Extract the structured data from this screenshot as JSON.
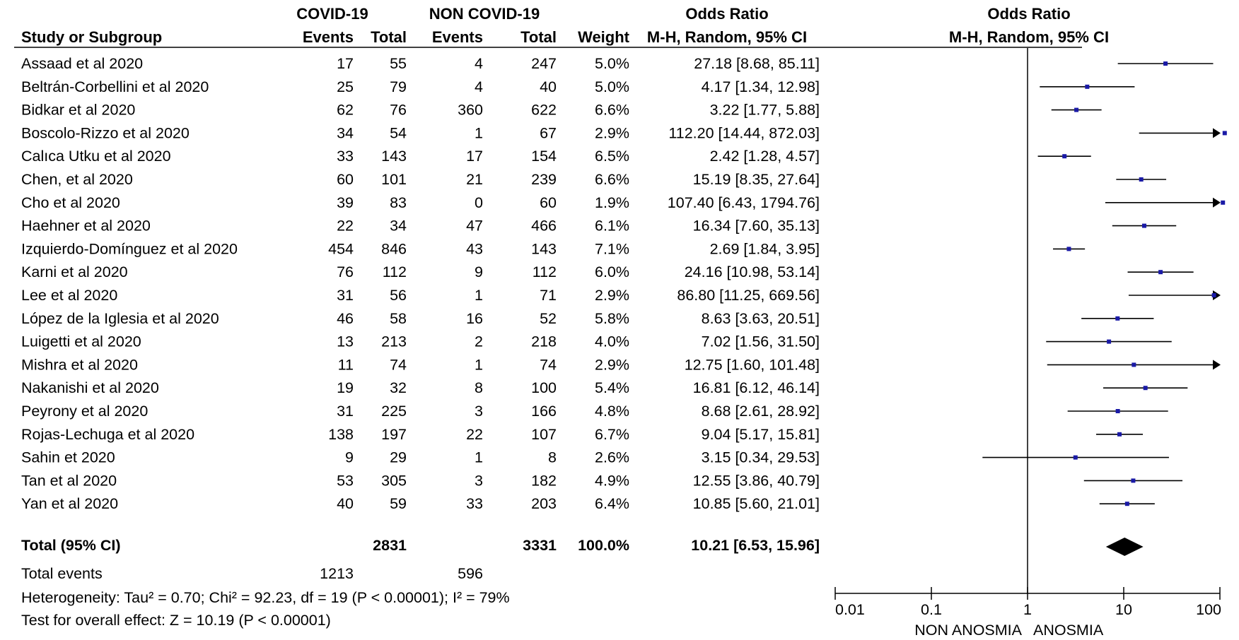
{
  "chart_data": {
    "type": "forest",
    "headers": {
      "group1": "COVID-19",
      "group2": "NON COVID-19",
      "or_col": "Odds Ratio",
      "study_col": "Study or Subgroup",
      "events": "Events",
      "total": "Total",
      "weight": "Weight",
      "method": "M-H, Random, 95% CI",
      "plot_title": "Odds Ratio",
      "plot_method": "M-H, Random, 95% CI"
    },
    "studies": [
      {
        "study": "Assaad et al 2020",
        "e1": "17",
        "t1": "55",
        "e2": "4",
        "t2": "247",
        "weight": "5.0%",
        "ci_text": "27.18 [8.68, 85.11]",
        "or": 27.18,
        "lo": 8.68,
        "hi": 85.11
      },
      {
        "study": "Beltrán-Corbellini et al 2020",
        "e1": "25",
        "t1": "79",
        "e2": "4",
        "t2": "40",
        "weight": "5.0%",
        "ci_text": "4.17 [1.34, 12.98]",
        "or": 4.17,
        "lo": 1.34,
        "hi": 12.98
      },
      {
        "study": "Bidkar et al 2020",
        "e1": "62",
        "t1": "76",
        "e2": "360",
        "t2": "622",
        "weight": "6.6%",
        "ci_text": "3.22 [1.77, 5.88]",
        "or": 3.22,
        "lo": 1.77,
        "hi": 5.88
      },
      {
        "study": "Boscolo-Rizzo et al 2020",
        "e1": "34",
        "t1": "54",
        "e2": "1",
        "t2": "67",
        "weight": "2.9%",
        "ci_text": "112.20 [14.44, 872.03]",
        "or": 112.2,
        "lo": 14.44,
        "hi": 872.03
      },
      {
        "study": "Calıca Utku et al 2020",
        "e1": "33",
        "t1": "143",
        "e2": "17",
        "t2": "154",
        "weight": "6.5%",
        "ci_text": "2.42 [1.28, 4.57]",
        "or": 2.42,
        "lo": 1.28,
        "hi": 4.57
      },
      {
        "study": "Chen, et al 2020",
        "e1": "60",
        "t1": "101",
        "e2": "21",
        "t2": "239",
        "weight": "6.6%",
        "ci_text": "15.19 [8.35, 27.64]",
        "or": 15.19,
        "lo": 8.35,
        "hi": 27.64
      },
      {
        "study": "Cho et al 2020",
        "e1": "39",
        "t1": "83",
        "e2": "0",
        "t2": "60",
        "weight": "1.9%",
        "ci_text": "107.40 [6.43, 1794.76]",
        "or": 107.4,
        "lo": 6.43,
        "hi": 1794.76
      },
      {
        "study": "Haehner et al 2020",
        "e1": "22",
        "t1": "34",
        "e2": "47",
        "t2": "466",
        "weight": "6.1%",
        "ci_text": "16.34 [7.60, 35.13]",
        "or": 16.34,
        "lo": 7.6,
        "hi": 35.13
      },
      {
        "study": "Izquierdo-Domínguez et al 2020",
        "e1": "454",
        "t1": "846",
        "e2": "43",
        "t2": "143",
        "weight": "7.1%",
        "ci_text": "2.69 [1.84, 3.95]",
        "or": 2.69,
        "lo": 1.84,
        "hi": 3.95
      },
      {
        "study": "Karni et al 2020",
        "e1": "76",
        "t1": "112",
        "e2": "9",
        "t2": "112",
        "weight": "6.0%",
        "ci_text": "24.16 [10.98, 53.14]",
        "or": 24.16,
        "lo": 10.98,
        "hi": 53.14
      },
      {
        "study": "Lee et al 2020",
        "e1": "31",
        "t1": "56",
        "e2": "1",
        "t2": "71",
        "weight": "2.9%",
        "ci_text": "86.80 [11.25, 669.56]",
        "or": 86.8,
        "lo": 11.25,
        "hi": 669.56
      },
      {
        "study": "López de la Iglesia et al 2020",
        "e1": "46",
        "t1": "58",
        "e2": "16",
        "t2": "52",
        "weight": "5.8%",
        "ci_text": "8.63 [3.63, 20.51]",
        "or": 8.63,
        "lo": 3.63,
        "hi": 20.51
      },
      {
        "study": "Luigetti et al 2020",
        "e1": "13",
        "t1": "213",
        "e2": "2",
        "t2": "218",
        "weight": "4.0%",
        "ci_text": "7.02 [1.56, 31.50]",
        "or": 7.02,
        "lo": 1.56,
        "hi": 31.5
      },
      {
        "study": "Mishra et al 2020",
        "e1": "11",
        "t1": "74",
        "e2": "1",
        "t2": "74",
        "weight": "2.9%",
        "ci_text": "12.75 [1.60, 101.48]",
        "or": 12.75,
        "lo": 1.6,
        "hi": 101.48
      },
      {
        "study": "Nakanishi et al 2020",
        "e1": "19",
        "t1": "32",
        "e2": "8",
        "t2": "100",
        "weight": "5.4%",
        "ci_text": "16.81 [6.12, 46.14]",
        "or": 16.81,
        "lo": 6.12,
        "hi": 46.14
      },
      {
        "study": "Peyrony et al 2020",
        "e1": "31",
        "t1": "225",
        "e2": "3",
        "t2": "166",
        "weight": "4.8%",
        "ci_text": "8.68 [2.61, 28.92]",
        "or": 8.68,
        "lo": 2.61,
        "hi": 28.92
      },
      {
        "study": "Rojas-Lechuga et al 2020",
        "e1": "138",
        "t1": "197",
        "e2": "22",
        "t2": "107",
        "weight": "6.7%",
        "ci_text": "9.04 [5.17, 15.81]",
        "or": 9.04,
        "lo": 5.17,
        "hi": 15.81
      },
      {
        "study": "Sahin et 2020",
        "e1": "9",
        "t1": "29",
        "e2": "1",
        "t2": "8",
        "weight": "2.6%",
        "ci_text": "3.15 [0.34, 29.53]",
        "or": 3.15,
        "lo": 0.34,
        "hi": 29.53
      },
      {
        "study": "Tan et al 2020",
        "e1": "53",
        "t1": "305",
        "e2": "3",
        "t2": "182",
        "weight": "4.9%",
        "ci_text": "12.55 [3.86, 40.79]",
        "or": 12.55,
        "lo": 3.86,
        "hi": 40.79
      },
      {
        "study": "Yan et al 2020",
        "e1": "40",
        "t1": "59",
        "e2": "33",
        "t2": "203",
        "weight": "6.4%",
        "ci_text": "10.85 [5.60, 21.01]",
        "or": 10.85,
        "lo": 5.6,
        "hi": 21.01
      }
    ],
    "total": {
      "label": "Total (95% CI)",
      "t1": "2831",
      "t2": "3331",
      "weight": "100.0%",
      "ci_text": "10.21 [6.53, 15.96]",
      "or": 10.21,
      "lo": 6.53,
      "hi": 15.96
    },
    "total_events": {
      "label": "Total events",
      "e1": "1213",
      "e2": "596"
    },
    "heterogeneity": "Heterogeneity: Tau² = 0.70; Chi² = 92.23, df = 19 (P < 0.00001); I² = 79%",
    "overall_effect": "Test for overall effect: Z = 10.19 (P < 0.00001)",
    "x_axis": {
      "scale": "log",
      "ticks": [
        0.01,
        0.1,
        1,
        10,
        100
      ],
      "tick_labels": [
        "0.01",
        "0.1",
        "1",
        "10",
        "100"
      ],
      "range": [
        0.01,
        100
      ],
      "left_label": "NON ANOSMIA",
      "right_label": "ANOSMIA"
    },
    "reference_line": 1,
    "colors": {
      "point": "#1a1aa6",
      "line": "#000000",
      "diamond": "#000000"
    }
  }
}
